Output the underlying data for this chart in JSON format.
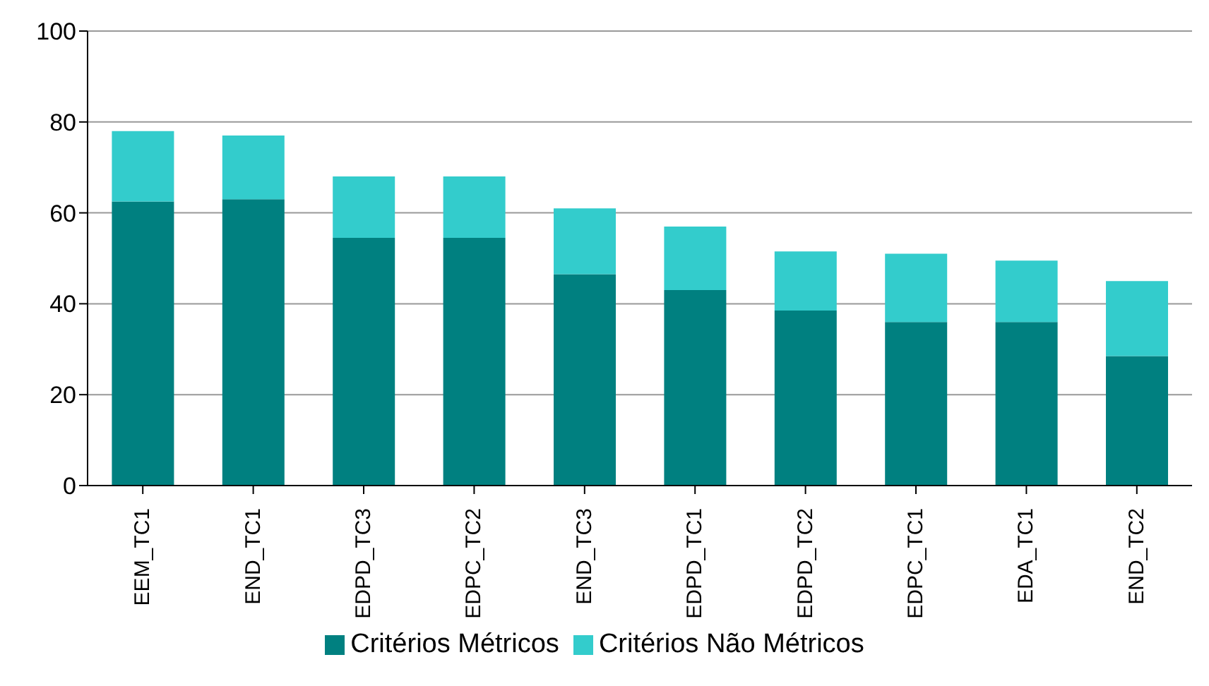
{
  "chart_data": {
    "type": "bar",
    "stacked": true,
    "categories": [
      "EEM_TC1",
      "END_TC1",
      "EDPD_TC3",
      "EDPC_TC2",
      "END_TC3",
      "EDPD_TC1",
      "EDPD_TC2",
      "EDPC_TC1",
      "EDA_TC1",
      "END_TC2"
    ],
    "series": [
      {
        "name": "Critérios Métricos",
        "color": "#008080",
        "values": [
          62.5,
          63,
          54.5,
          54.5,
          46.5,
          43,
          38.5,
          36,
          36,
          28.5
        ]
      },
      {
        "name": "Critérios Não Métricos",
        "color": "#33cccc",
        "values": [
          15.5,
          14,
          13.5,
          13.5,
          14.5,
          14,
          13,
          15,
          13.5,
          16.5
        ]
      }
    ],
    "ylim": [
      0,
      100
    ],
    "yticks": [
      0,
      20,
      40,
      60,
      80,
      100
    ],
    "grid": "y",
    "legend": "bottom"
  }
}
